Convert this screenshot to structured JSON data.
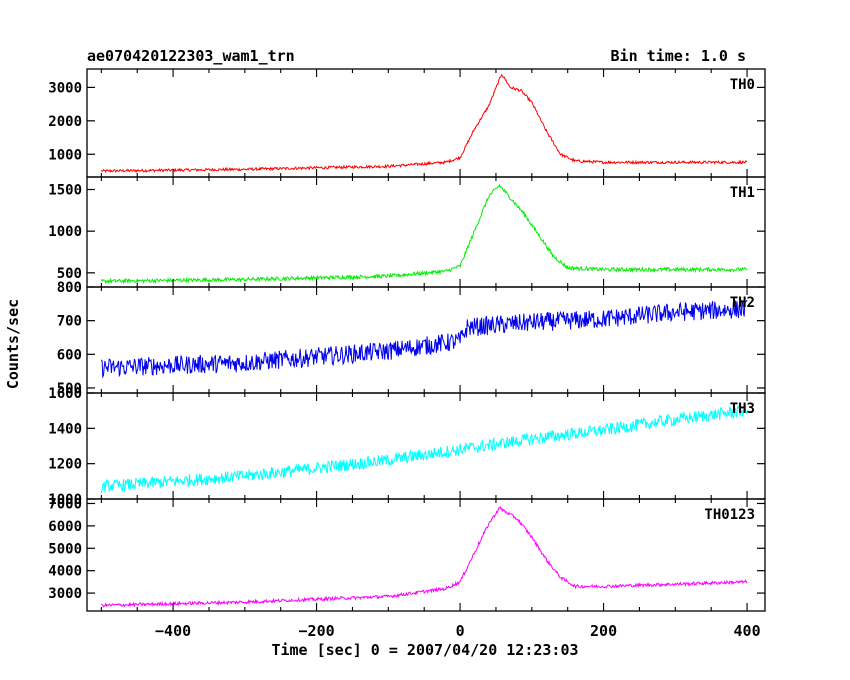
{
  "chart_data": {
    "type": "line",
    "title": "ae070420122303_wam1_trn",
    "subtitle": "Bin time: 1.0 s",
    "xlabel": "Time [sec] 0 = 2007/04/20 12:23:03",
    "ylabel": "Counts/sec",
    "xlim": [
      -520,
      425
    ],
    "x_ticks": [
      -400,
      -200,
      0,
      200,
      400
    ],
    "x_tick_labels": [
      "−400",
      "−200",
      "0",
      "200",
      "400"
    ],
    "x_range": [
      -500,
      400
    ],
    "grid": false,
    "panels": [
      {
        "name": "TH0",
        "color": "#ff0000",
        "ylim": [
          320,
          3550
        ],
        "yticks": [
          1000,
          2000,
          3000
        ],
        "key_points": [
          [
            -500,
            500
          ],
          [
            -300,
            550
          ],
          [
            -100,
            640
          ],
          [
            -20,
            760
          ],
          [
            0,
            900
          ],
          [
            20,
            1750
          ],
          [
            40,
            2450
          ],
          [
            58,
            3400
          ],
          [
            70,
            3000
          ],
          [
            85,
            2900
          ],
          [
            100,
            2550
          ],
          [
            120,
            1700
          ],
          [
            140,
            1000
          ],
          [
            160,
            800
          ],
          [
            200,
            760
          ],
          [
            300,
            760
          ],
          [
            400,
            760
          ]
        ],
        "noise": 40
      },
      {
        "name": "TH1",
        "color": "#00ee00",
        "ylim": [
          330,
          1650
        ],
        "yticks": [
          500,
          1000,
          1500
        ],
        "key_points": [
          [
            -500,
            400
          ],
          [
            -300,
            420
          ],
          [
            -100,
            460
          ],
          [
            -20,
            520
          ],
          [
            0,
            580
          ],
          [
            20,
            1000
          ],
          [
            40,
            1420
          ],
          [
            55,
            1550
          ],
          [
            70,
            1400
          ],
          [
            90,
            1200
          ],
          [
            110,
            950
          ],
          [
            130,
            700
          ],
          [
            150,
            560
          ],
          [
            200,
            540
          ],
          [
            300,
            540
          ],
          [
            400,
            540
          ]
        ],
        "noise": 22
      },
      {
        "name": "TH2",
        "color": "#0000ee",
        "ylim": [
          485,
          800
        ],
        "yticks": [
          500,
          600,
          700,
          800
        ],
        "key_points": [
          [
            -500,
            560
          ],
          [
            -300,
            575
          ],
          [
            -100,
            610
          ],
          [
            0,
            640
          ],
          [
            10,
            680
          ],
          [
            100,
            695
          ],
          [
            200,
            705
          ],
          [
            300,
            725
          ],
          [
            400,
            735
          ]
        ],
        "noise": 28
      },
      {
        "name": "TH3",
        "color": "#00ffff",
        "ylim": [
          1000,
          1600
        ],
        "yticks": [
          1000,
          1200,
          1400,
          1600
        ],
        "key_points": [
          [
            -500,
            1070
          ],
          [
            -300,
            1130
          ],
          [
            -100,
            1220
          ],
          [
            0,
            1280
          ],
          [
            100,
            1340
          ],
          [
            200,
            1390
          ],
          [
            300,
            1450
          ],
          [
            400,
            1500
          ]
        ],
        "noise": 35
      },
      {
        "name": "TH0123",
        "color": "#ff00ff",
        "ylim": [
          2200,
          7200
        ],
        "yticks": [
          3000,
          4000,
          5000,
          6000,
          7000
        ],
        "key_points": [
          [
            -500,
            2450
          ],
          [
            -300,
            2600
          ],
          [
            -100,
            2850
          ],
          [
            -20,
            3200
          ],
          [
            0,
            3500
          ],
          [
            20,
            4800
          ],
          [
            40,
            6100
          ],
          [
            55,
            6800
          ],
          [
            65,
            6600
          ],
          [
            80,
            6300
          ],
          [
            100,
            5500
          ],
          [
            120,
            4500
          ],
          [
            140,
            3700
          ],
          [
            160,
            3300
          ],
          [
            200,
            3300
          ],
          [
            300,
            3400
          ],
          [
            400,
            3500
          ]
        ],
        "noise": 70
      }
    ]
  }
}
